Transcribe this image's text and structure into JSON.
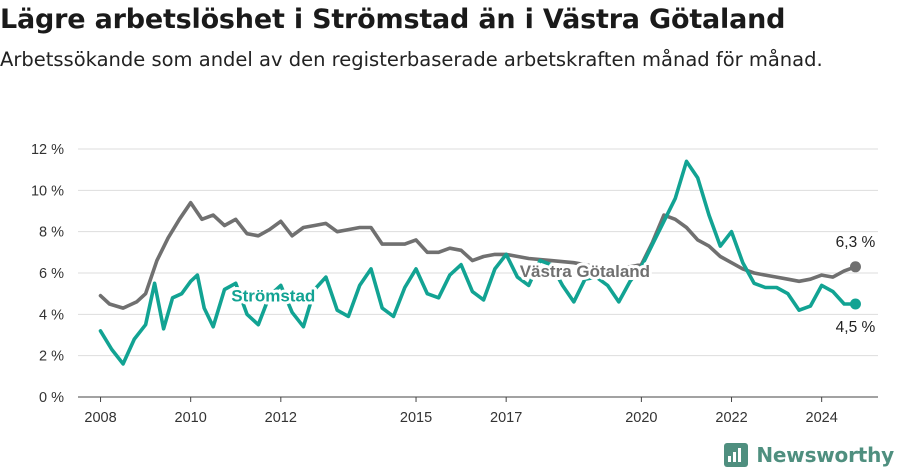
{
  "header": {
    "title": "Lägre arbetslöshet i Strömstad än i Västra Götaland",
    "subtitle": "Arbetssökande som andel av den registerbaserade arbetskraften månad för månad."
  },
  "brand": {
    "name": "Newsworthy"
  },
  "chart_data": {
    "type": "line",
    "title": "Lägre arbetslöshet i Strömstad än i Västra Götaland",
    "subtitle": "Arbetssökande som andel av den registerbaserade arbetskraften månad för månad.",
    "xlabel": "",
    "ylabel": "",
    "xlim": [
      2007.5,
      2025.25
    ],
    "ylim": [
      0,
      12
    ],
    "grid": true,
    "legend": "inline labels",
    "x_ticks": [
      2008,
      2010,
      2012,
      2015,
      2017,
      2020,
      2022,
      2024
    ],
    "x_tick_labels": [
      "2008",
      "2010",
      "2012",
      "2015",
      "2017",
      "2020",
      "2022",
      "2024"
    ],
    "y_ticks": [
      0,
      2,
      4,
      6,
      8,
      10,
      12
    ],
    "y_tick_labels": [
      "0 %",
      "2 %",
      "4 %",
      "6 %",
      "8 %",
      "10 %",
      "12 %"
    ],
    "colors": {
      "region": "#707070",
      "town": "#12a393"
    },
    "series": [
      {
        "name": "Västra Götaland",
        "key": "region",
        "x": [
          2008.0,
          2008.2,
          2008.5,
          2008.8,
          2009.0,
          2009.25,
          2009.5,
          2009.75,
          2010.0,
          2010.25,
          2010.5,
          2010.75,
          2011.0,
          2011.25,
          2011.5,
          2011.75,
          2012.0,
          2012.25,
          2012.5,
          2012.75,
          2013.0,
          2013.25,
          2013.5,
          2013.75,
          2014.0,
          2014.25,
          2014.5,
          2014.75,
          2015.0,
          2015.25,
          2015.5,
          2015.75,
          2016.0,
          2016.25,
          2016.5,
          2016.75,
          2017.0,
          2017.5,
          2018.0,
          2018.5,
          2019.0,
          2019.5,
          2020.0,
          2020.25,
          2020.5,
          2020.75,
          2021.0,
          2021.25,
          2021.5,
          2021.75,
          2022.0,
          2022.25,
          2022.5,
          2022.75,
          2023.0,
          2023.25,
          2023.5,
          2023.75,
          2024.0,
          2024.25,
          2024.5,
          2024.75
        ],
        "y": [
          4.9,
          4.5,
          4.3,
          4.6,
          5.0,
          6.6,
          7.7,
          8.6,
          9.4,
          8.6,
          8.8,
          8.3,
          8.6,
          7.9,
          7.8,
          8.1,
          8.5,
          7.8,
          8.2,
          8.3,
          8.4,
          8.0,
          8.1,
          8.2,
          8.2,
          7.4,
          7.4,
          7.4,
          7.6,
          7.0,
          7.0,
          7.2,
          7.1,
          6.6,
          6.8,
          6.9,
          6.9,
          6.7,
          6.6,
          6.5,
          6.3,
          6.2,
          6.4,
          7.5,
          8.8,
          8.6,
          8.2,
          7.6,
          7.3,
          6.8,
          6.5,
          6.2,
          6.0,
          5.9,
          5.8,
          5.7,
          5.6,
          5.7,
          5.9,
          5.8,
          6.1,
          6.3
        ]
      },
      {
        "name": "Strömstad",
        "key": "town",
        "x": [
          2008.0,
          2008.25,
          2008.5,
          2008.75,
          2009.0,
          2009.2,
          2009.4,
          2009.6,
          2009.8,
          2010.0,
          2010.15,
          2010.3,
          2010.5,
          2010.75,
          2011.0,
          2011.25,
          2011.5,
          2011.75,
          2012.0,
          2012.25,
          2012.5,
          2012.75,
          2013.0,
          2013.25,
          2013.5,
          2013.75,
          2014.0,
          2014.25,
          2014.5,
          2014.75,
          2015.0,
          2015.25,
          2015.5,
          2015.75,
          2016.0,
          2016.25,
          2016.5,
          2016.75,
          2017.0,
          2017.25,
          2017.5,
          2017.75,
          2018.0,
          2018.25,
          2018.5,
          2018.75,
          2019.0,
          2019.25,
          2019.5,
          2019.75,
          2020.0,
          2020.25,
          2020.5,
          2020.75,
          2021.0,
          2021.25,
          2021.5,
          2021.75,
          2022.0,
          2022.25,
          2022.5,
          2022.75,
          2023.0,
          2023.25,
          2023.5,
          2023.75,
          2024.0,
          2024.25,
          2024.5,
          2024.75
        ],
        "y": [
          3.2,
          2.3,
          1.6,
          2.8,
          3.5,
          5.5,
          3.3,
          4.8,
          5.0,
          5.6,
          5.9,
          4.3,
          3.4,
          5.2,
          5.5,
          4.0,
          3.5,
          4.9,
          5.4,
          4.1,
          3.4,
          5.2,
          5.8,
          4.2,
          3.9,
          5.4,
          6.2,
          4.3,
          3.9,
          5.3,
          6.2,
          5.0,
          4.8,
          5.9,
          6.4,
          5.1,
          4.7,
          6.2,
          6.9,
          5.8,
          5.4,
          6.6,
          6.4,
          5.4,
          4.6,
          5.7,
          5.8,
          5.4,
          4.6,
          5.6,
          6.3,
          7.4,
          8.5,
          9.6,
          11.4,
          10.6,
          8.8,
          7.3,
          8.0,
          6.5,
          5.5,
          5.3,
          5.3,
          5.0,
          4.2,
          4.4,
          5.4,
          5.1,
          4.5,
          4.5
        ]
      }
    ],
    "annotations": {
      "region_label": "Västra Götaland",
      "town_label": "Strömstad",
      "region_end_label": "6,3 %",
      "town_end_label": "4,5 %"
    }
  }
}
